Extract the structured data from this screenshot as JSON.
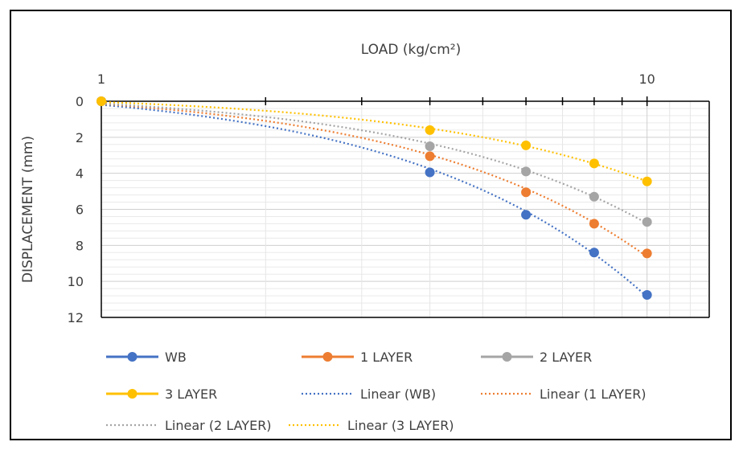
{
  "chart_data": {
    "type": "scatter",
    "xlabel": "LOAD (kg/cm²)",
    "ylabel": "DISPLACEMENT (mm)",
    "x_scale": "log",
    "xlim": [
      1,
      13
    ],
    "x_ticks": [
      1,
      10
    ],
    "ylim": [
      0,
      12
    ],
    "y_ticks": [
      0,
      2,
      4,
      6,
      8,
      10,
      12
    ],
    "y_reversed": true,
    "x_axis_position": "top",
    "grid": true,
    "legend_position": "bottom",
    "series": [
      {
        "name": "WB",
        "color": "#4472C4",
        "x": [
          1,
          4,
          6,
          8,
          10
        ],
        "y": [
          0,
          3.95,
          6.3,
          8.4,
          10.75
        ]
      },
      {
        "name": "1 LAYER",
        "color": "#ED7D31",
        "x": [
          1,
          4,
          6,
          8,
          10
        ],
        "y": [
          0,
          3.05,
          5.05,
          6.8,
          8.45
        ]
      },
      {
        "name": "2 LAYER",
        "color": "#A5A5A5",
        "x": [
          1,
          4,
          6,
          8,
          10
        ],
        "y": [
          0,
          2.5,
          3.9,
          5.3,
          6.7
        ]
      },
      {
        "name": "3 LAYER",
        "color": "#FFC000",
        "x": [
          1,
          4,
          6,
          8,
          10
        ],
        "y": [
          0,
          1.6,
          2.45,
          3.45,
          4.45
        ]
      }
    ],
    "trendlines": [
      {
        "name": "Linear (WB)",
        "color": "#4472C4",
        "of": "WB"
      },
      {
        "name": "Linear (1 LAYER)",
        "color": "#ED7D31",
        "of": "1 LAYER"
      },
      {
        "name": "Linear (2 LAYER)",
        "color": "#A5A5A5",
        "of": "2 LAYER"
      },
      {
        "name": "Linear (3 LAYER)",
        "color": "#FFC000",
        "of": "3 LAYER"
      }
    ]
  }
}
